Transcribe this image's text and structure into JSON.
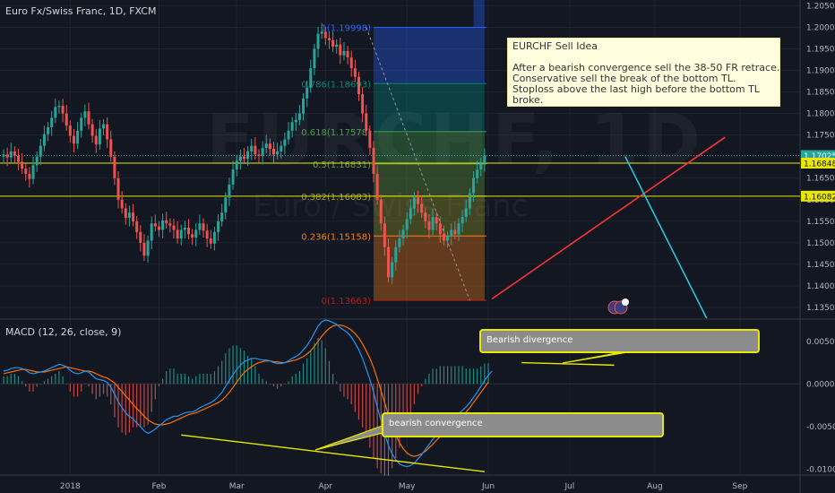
{
  "header": {
    "title": "Euro Fx/Swiss Franc, 1D, FXCM",
    "watermark_symbol": "EURCHF, 1D",
    "watermark_name": "Euro / Swiss Franc"
  },
  "macd": {
    "label": "MACD (12, 26, close, 9)"
  },
  "note": {
    "title": "EURCHF Sell Idea",
    "lines": [
      "After a bearish convergence sell the 38-50 FR retrace.",
      "Conservative sell the break of the bottom TL.",
      "Stoploss above the last high before the bottom TL",
      "broke."
    ]
  },
  "callouts": {
    "divergence": "Bearish divergence",
    "convergence": "bearish convergence"
  },
  "colors": {
    "background": "#131722",
    "up": "#26a69a",
    "down": "#ef5350",
    "trendline": "#ff3333",
    "cyan": "#26c6da",
    "yellow": "#e8e800",
    "macd": "#2196f3",
    "signal": "#ff6d00"
  },
  "chart_data": [
    {
      "type": "candlestick",
      "title": "Euro Fx/Swiss Franc, 1D, FXCM",
      "x_ticks": [
        "2018",
        "Feb",
        "Mar",
        "Apr",
        "May",
        "Jun",
        "Jul",
        "Aug",
        "Sep"
      ],
      "y_ticks": [
        "1.20500",
        "1.20000",
        "1.19500",
        "1.19000",
        "1.18500",
        "1.18000",
        "1.17500",
        "1.17000",
        "1.16500",
        "1.16000",
        "1.15500",
        "1.15000",
        "1.14500",
        "1.14000",
        "1.13500"
      ],
      "ylim": [
        1.1325,
        1.2055
      ],
      "price_labels": [
        {
          "text": "1.17025",
          "value": 1.17025,
          "style": "last"
        },
        {
          "text": "1.16848",
          "value": 1.16848,
          "style": "yellow"
        },
        {
          "text": "1.16082",
          "value": 1.16082,
          "style": "yellow"
        }
      ],
      "fibonacci": [
        {
          "label": "1(1.19998)",
          "value": 1.19998
        },
        {
          "label": "0.786(1.18693)",
          "value": 1.18693
        },
        {
          "label": "0.618(1.17578)",
          "value": 1.17578
        },
        {
          "label": "0.5(1.16831)",
          "value": 1.16831
        },
        {
          "label": "0.382(1.16083)",
          "value": 1.16083
        },
        {
          "label": "0.236(1.15158)",
          "value": 1.15158
        },
        {
          "label": "0(1.13663)",
          "value": 1.13663
        }
      ],
      "closes": [
        1.1705,
        1.1698,
        1.1712,
        1.1702,
        1.1688,
        1.1672,
        1.166,
        1.1648,
        1.168,
        1.17,
        1.1725,
        1.1752,
        1.1768,
        1.179,
        1.1815,
        1.1818,
        1.18,
        1.1772,
        1.1748,
        1.173,
        1.176,
        1.179,
        1.1805,
        1.1775,
        1.1748,
        1.1728,
        1.1765,
        1.1775,
        1.174,
        1.17,
        1.165,
        1.16,
        1.158,
        1.1558,
        1.157,
        1.155,
        1.1525,
        1.15,
        1.147,
        1.1505,
        1.1545,
        1.1538,
        1.153,
        1.1552,
        1.1545,
        1.154,
        1.153,
        1.151,
        1.153,
        1.1535,
        1.152,
        1.1512,
        1.153,
        1.1545,
        1.1528,
        1.151,
        1.1498,
        1.1525,
        1.155,
        1.157,
        1.1605,
        1.1635,
        1.167,
        1.169,
        1.17,
        1.1695,
        1.1712,
        1.1725,
        1.1705,
        1.1702,
        1.172,
        1.173,
        1.1718,
        1.1705,
        1.1712,
        1.1725,
        1.174,
        1.176,
        1.178,
        1.1785,
        1.18,
        1.1835,
        1.186,
        1.1905,
        1.195,
        1.1985,
        1.199,
        1.1975,
        1.197,
        1.1955,
        1.196,
        1.1935,
        1.1945,
        1.193,
        1.1905,
        1.1885,
        1.1845,
        1.18,
        1.176,
        1.172,
        1.166,
        1.16,
        1.1545,
        1.149,
        1.142,
        1.1455,
        1.149,
        1.151,
        1.153,
        1.1555,
        1.158,
        1.1605,
        1.159,
        1.157,
        1.155,
        1.153,
        1.156,
        1.1545,
        1.152,
        1.1505,
        1.1515,
        1.153,
        1.152,
        1.1545,
        1.156,
        1.158,
        1.1615,
        1.165,
        1.167,
        1.1685,
        1.1703
      ],
      "lines": [
        {
          "name": "bottom TL",
          "color": "trendline",
          "from": [
            132,
            1.137
          ],
          "to": [
            195,
            1.1745
          ]
        },
        {
          "name": "projection",
          "color": "cyan",
          "from": [
            168,
            1.17
          ],
          "to": [
            190,
            1.1325
          ]
        }
      ]
    },
    {
      "type": "line",
      "title": "MACD (12, 26, close, 9)",
      "y_ticks": [
        "0.0050",
        "0.0000",
        "-0.0050",
        "-0.0100"
      ],
      "ylim": [
        -0.0107,
        0.0075
      ],
      "series": [
        {
          "color": "macd",
          "values": [
            0.0015,
            0.0016,
            0.0018,
            0.0019,
            0.0019,
            0.0018,
            0.0016,
            0.0013,
            0.0012,
            0.0013,
            0.0014,
            0.0015,
            0.0017,
            0.0019,
            0.0021,
            0.0023,
            0.0022,
            0.002,
            0.0016,
            0.0013,
            0.0012,
            0.0013,
            0.0015,
            0.0014,
            0.001,
            0.0006,
            0.0005,
            0.0004,
            0.0002,
            -0.0004,
            -0.0012,
            -0.0021,
            -0.0028,
            -0.0034,
            -0.0038,
            -0.0041,
            -0.0046,
            -0.005,
            -0.0055,
            -0.0058,
            -0.0056,
            -0.0053,
            -0.0049,
            -0.0046,
            -0.0042,
            -0.004,
            -0.0038,
            -0.0038,
            -0.0036,
            -0.0034,
            -0.0033,
            -0.0033,
            -0.0031,
            -0.0028,
            -0.0026,
            -0.0024,
            -0.0022,
            -0.0019,
            -0.0015,
            -0.001,
            -0.0003,
            0.0004,
            0.0011,
            0.0017,
            0.0022,
            0.0026,
            0.0028,
            0.003,
            0.003,
            0.0029,
            0.0028,
            0.0028,
            0.0027,
            0.0025,
            0.0024,
            0.0024,
            0.0025,
            0.0027,
            0.003,
            0.0032,
            0.0035,
            0.004,
            0.0045,
            0.0052,
            0.006,
            0.0068,
            0.0073,
            0.0075,
            0.0074,
            0.0072,
            0.007,
            0.0066,
            0.0063,
            0.006,
            0.0055,
            0.0048,
            0.004,
            0.003,
            0.0018,
            0.0005,
            -0.001,
            -0.0027,
            -0.0043,
            -0.0058,
            -0.0072,
            -0.0082,
            -0.0089,
            -0.0094,
            -0.0096,
            -0.0097,
            -0.0096,
            -0.0093,
            -0.0088,
            -0.0083,
            -0.0077,
            -0.0071,
            -0.0065,
            -0.006,
            -0.0055,
            -0.0051,
            -0.0047,
            -0.0043,
            -0.0039,
            -0.0035,
            -0.0031,
            -0.0027,
            -0.0022,
            -0.0016,
            -0.001,
            -0.0003,
            0.0004,
            0.001,
            0.0015
          ]
        },
        {
          "color": "signal",
          "values": [
            0.0012,
            0.0013,
            0.0014,
            0.0015,
            0.0016,
            0.0017,
            0.0017,
            0.0016,
            0.0015,
            0.0014,
            0.0014,
            0.0014,
            0.0015,
            0.0016,
            0.0017,
            0.0018,
            0.0019,
            0.002,
            0.0019,
            0.0018,
            0.0017,
            0.0016,
            0.0015,
            0.0015,
            0.0014,
            0.0012,
            0.001,
            0.0008,
            0.0007,
            0.0004,
            0.0001,
            -0.0004,
            -0.0009,
            -0.0014,
            -0.0019,
            -0.0024,
            -0.0029,
            -0.0033,
            -0.0038,
            -0.0042,
            -0.0045,
            -0.0047,
            -0.0048,
            -0.0048,
            -0.0047,
            -0.0046,
            -0.0044,
            -0.0042,
            -0.004,
            -0.0038,
            -0.0036,
            -0.0035,
            -0.0034,
            -0.0032,
            -0.003,
            -0.0028,
            -0.0026,
            -0.0024,
            -0.0022,
            -0.0019,
            -0.0015,
            -0.001,
            -0.0004,
            0.0002,
            0.0008,
            0.0013,
            0.0017,
            0.002,
            0.0023,
            0.0025,
            0.0026,
            0.0027,
            0.0027,
            0.0026,
            0.0026,
            0.0025,
            0.0025,
            0.0026,
            0.0027,
            0.0028,
            0.003,
            0.0032,
            0.0035,
            0.0039,
            0.0044,
            0.005,
            0.0056,
            0.0061,
            0.0065,
            0.0068,
            0.0069,
            0.0069,
            0.0068,
            0.0066,
            0.0063,
            0.0059,
            0.0054,
            0.0047,
            0.0039,
            0.003,
            0.0019,
            0.0006,
            -0.0008,
            -0.0022,
            -0.0036,
            -0.0049,
            -0.006,
            -0.0069,
            -0.0076,
            -0.0081,
            -0.0084,
            -0.0085,
            -0.0084,
            -0.0082,
            -0.0079,
            -0.0075,
            -0.0071,
            -0.0066,
            -0.0062,
            -0.0058,
            -0.0054,
            -0.005,
            -0.0046,
            -0.0042,
            -0.0038,
            -0.0033,
            -0.0028,
            -0.0022,
            -0.0016,
            -0.001,
            -0.0004,
            0.0002
          ]
        }
      ]
    }
  ]
}
